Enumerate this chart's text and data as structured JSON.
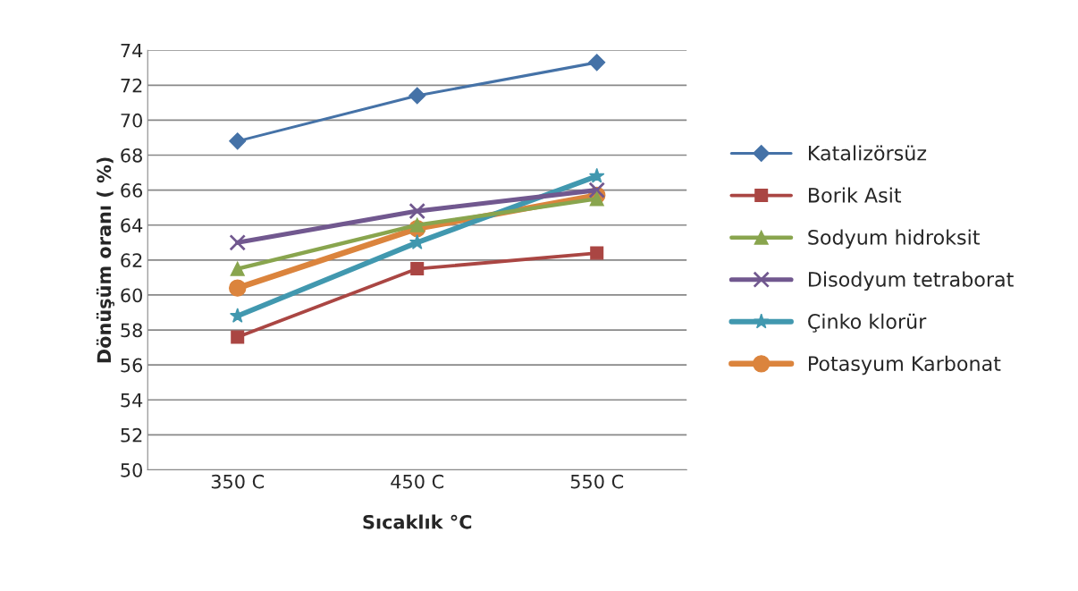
{
  "chart_data": {
    "type": "line",
    "xlabel": "Sıcaklık °C",
    "ylabel": "Dönüşüm oranı ( %)",
    "categories": [
      "350 C",
      "450 C",
      "550 C"
    ],
    "series": [
      {
        "name": "Katalizörsüz",
        "color": "#4572a7",
        "marker": "diamond",
        "values": [
          68.8,
          71.4,
          73.3
        ]
      },
      {
        "name": "Borik Asit",
        "color": "#aa4643",
        "marker": "square",
        "values": [
          57.6,
          61.5,
          62.4
        ]
      },
      {
        "name": "Sodyum hidroksit",
        "color": "#89a54e",
        "marker": "triangle",
        "values": [
          61.5,
          64.0,
          65.5
        ]
      },
      {
        "name": "Disodyum tetraborat",
        "color": "#71588f",
        "marker": "cross",
        "values": [
          63.0,
          64.8,
          66.0
        ]
      },
      {
        "name": "Çinko klorür",
        "color": "#4198af",
        "marker": "star",
        "values": [
          58.8,
          63.0,
          66.8
        ]
      },
      {
        "name": "Potasyum Karbonat",
        "color": "#db843d",
        "marker": "circle",
        "values": [
          60.4,
          63.8,
          65.7
        ]
      }
    ],
    "ylim": [
      50,
      74
    ],
    "yticks": [
      50,
      52,
      54,
      56,
      58,
      60,
      62,
      64,
      66,
      68,
      70,
      72,
      74
    ],
    "grid": "y",
    "legend": "right",
    "line_style": "solid"
  }
}
